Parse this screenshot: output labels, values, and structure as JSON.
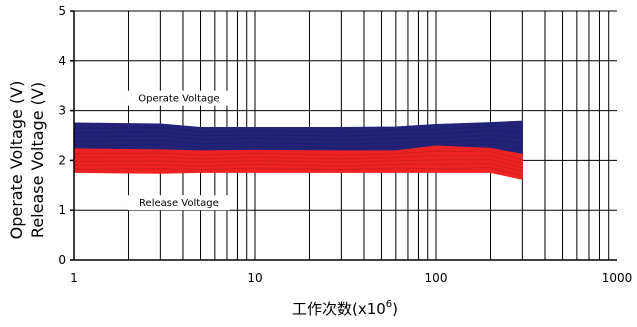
{
  "chart_data": {
    "type": "area",
    "xscale": "log",
    "xlim": [
      1,
      1000
    ],
    "ylim": [
      0,
      5
    ],
    "xticks": [
      {
        "value": 1,
        "label": "1"
      },
      {
        "value": 10,
        "label": "10"
      },
      {
        "value": 100,
        "label": "100"
      },
      {
        "value": 1000,
        "label": "1000"
      }
    ],
    "yticks": [
      {
        "value": 0,
        "label": "0"
      },
      {
        "value": 1,
        "label": "1"
      },
      {
        "value": 2,
        "label": "2"
      },
      {
        "value": 3,
        "label": "3"
      },
      {
        "value": 4,
        "label": "4"
      },
      {
        "value": 5,
        "label": "5"
      }
    ],
    "ylabel_line1": "Operate Voltage (V)",
    "ylabel_line2": "Release Voltage (V)",
    "xlabel_main": "工作次数(x10",
    "xlabel_sup": "6",
    "xlabel_close": ")",
    "grid": true,
    "series": [
      {
        "name": "Operate Voltage",
        "color": "#23237a",
        "x": [
          1,
          3,
          5,
          10,
          30,
          60,
          100,
          200,
          300
        ],
        "upper": [
          2.75,
          2.73,
          2.66,
          2.66,
          2.66,
          2.67,
          2.72,
          2.76,
          2.79
        ],
        "lower": [
          2.22,
          2.22,
          2.2,
          2.19,
          2.18,
          2.18,
          2.21,
          2.22,
          2.14
        ]
      },
      {
        "name": "Release Voltage",
        "color": "#ee2222",
        "x": [
          1,
          3,
          5,
          10,
          30,
          60,
          100,
          200,
          300
        ],
        "upper": [
          2.23,
          2.21,
          2.19,
          2.2,
          2.19,
          2.19,
          2.29,
          2.24,
          2.12
        ],
        "lower": [
          1.76,
          1.74,
          1.76,
          1.76,
          1.76,
          1.76,
          1.76,
          1.76,
          1.62
        ]
      }
    ],
    "annotations": [
      {
        "text": "Operate Voltage",
        "x": 3.8,
        "y": 3.25
      },
      {
        "text": "Release Voltage",
        "x": 3.8,
        "y": 1.15
      }
    ]
  }
}
